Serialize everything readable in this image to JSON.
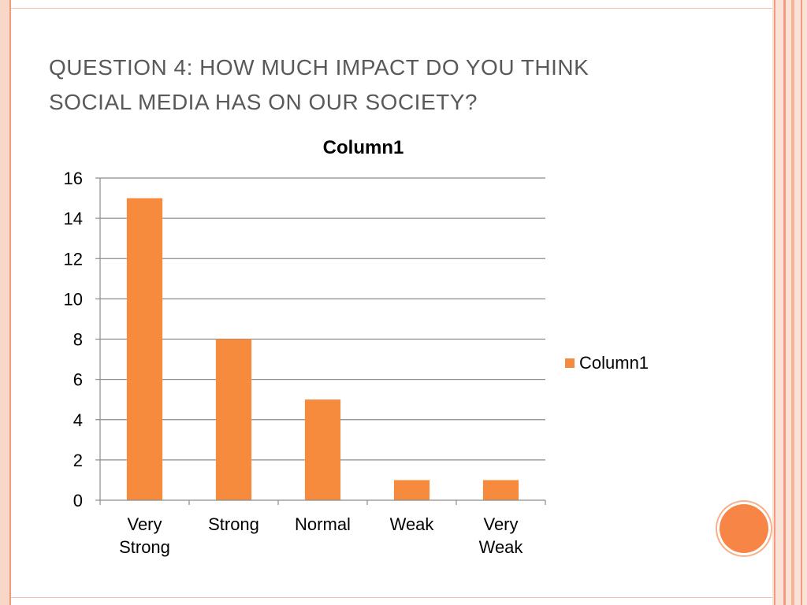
{
  "slide": {
    "title_line1": "Question 4: how much impact do you think",
    "title_line2": "social media has on our society?"
  },
  "colors": {
    "bar": "#f68b3d",
    "axis": "#8c8c8c",
    "grid": "#8c8c8c",
    "text": "#000000",
    "title": "#595959",
    "accent": "#f78646"
  },
  "chart_data": {
    "type": "bar",
    "title": "Column1",
    "categories": [
      "Very Strong",
      "Strong",
      "Normal",
      "Weak",
      "Very Weak"
    ],
    "category_lines": [
      [
        "Very",
        "Strong"
      ],
      [
        "Strong"
      ],
      [
        "Normal"
      ],
      [
        "Weak"
      ],
      [
        "Very",
        "Weak"
      ]
    ],
    "series": [
      {
        "name": "Column1",
        "values": [
          15,
          8,
          5,
          1,
          1
        ]
      }
    ],
    "ylim": [
      0,
      16
    ],
    "yticks": [
      0,
      2,
      4,
      6,
      8,
      10,
      12,
      14,
      16
    ],
    "grid": true,
    "legend": "right"
  }
}
